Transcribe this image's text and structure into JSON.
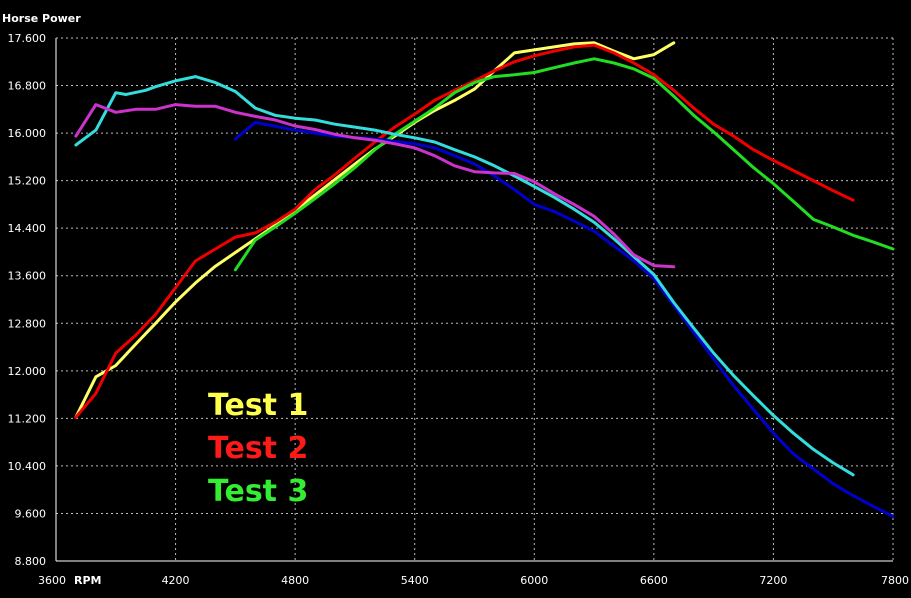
{
  "chart_data": {
    "type": "line",
    "ylabel": "Horse Power",
    "xlabel": "RPM",
    "xlim": [
      3600,
      7800
    ],
    "ylim": [
      8.8,
      17.6
    ],
    "x_ticks": [
      "3600",
      "4200",
      "4800",
      "5400",
      "6000",
      "6600",
      "7200",
      "7800"
    ],
    "y_ticks": [
      "17.600",
      "16.800",
      "16.000",
      "15.200",
      "14.400",
      "13.600",
      "12.800",
      "12.000",
      "11.200",
      "10.400",
      "9.600",
      "8.800"
    ],
    "x_tick_values": [
      3600,
      4200,
      4800,
      5400,
      6000,
      6600,
      7200,
      7800
    ],
    "y_tick_values": [
      17.6,
      16.8,
      16.0,
      15.2,
      14.4,
      13.6,
      12.8,
      12.0,
      11.2,
      10.4,
      9.6,
      8.8
    ],
    "grid": true,
    "legend_placement": "bottom-left",
    "legend": [
      {
        "label": "Test 1",
        "color": "#ffff4d"
      },
      {
        "label": "Test 2",
        "color": "#ff1a1a"
      },
      {
        "label": "Test 3",
        "color": "#33ee33"
      }
    ],
    "series": [
      {
        "color": "#ffff66",
        "x": [
          3700,
          3800,
          3900,
          4000,
          4100,
          4200,
          4300,
          4400,
          4500,
          4600,
          4700,
          4800,
          4900,
          5000,
          5100,
          5200,
          5300,
          5400,
          5500,
          5600,
          5700,
          5800,
          5900,
          6000,
          6100,
          6200,
          6300,
          6400,
          6500,
          6600,
          6700
        ],
        "y": [
          11.22,
          11.9,
          12.09,
          12.45,
          12.8,
          13.16,
          13.48,
          13.76,
          13.99,
          14.22,
          14.45,
          14.7,
          14.96,
          15.22,
          15.48,
          15.73,
          15.95,
          16.18,
          16.38,
          16.55,
          16.74,
          17.05,
          17.35,
          17.4,
          17.45,
          17.5,
          17.52,
          17.38,
          17.25,
          17.32,
          17.52
        ]
      },
      {
        "color": "#ee0000",
        "x": [
          3700,
          3800,
          3900,
          4000,
          4100,
          4200,
          4300,
          4400,
          4500,
          4600,
          4700,
          4800,
          4900,
          5000,
          5100,
          5200,
          5300,
          5400,
          5500,
          5600,
          5700,
          5800,
          5900,
          6000,
          6100,
          6200,
          6300,
          6400,
          6500,
          6600,
          6700,
          6800,
          6900,
          7000,
          7100,
          7200,
          7300,
          7400,
          7500,
          7600
        ],
        "y": [
          11.22,
          11.62,
          12.3,
          12.6,
          12.95,
          13.4,
          13.85,
          14.05,
          14.25,
          14.32,
          14.5,
          14.72,
          15.05,
          15.3,
          15.58,
          15.85,
          16.1,
          16.32,
          16.55,
          16.72,
          16.88,
          17.05,
          17.2,
          17.3,
          17.38,
          17.45,
          17.48,
          17.35,
          17.18,
          16.98,
          16.72,
          16.42,
          16.15,
          15.95,
          15.72,
          15.54,
          15.37,
          15.2,
          15.03,
          14.87
        ]
      },
      {
        "color": "#22dd22",
        "x": [
          4500,
          4600,
          4700,
          4800,
          4900,
          5000,
          5100,
          5200,
          5300,
          5400,
          5500,
          5600,
          5700,
          5800,
          5900,
          6000,
          6100,
          6200,
          6300,
          6400,
          6500,
          6600,
          6700,
          6800,
          6900,
          7000,
          7100,
          7200,
          7300,
          7400,
          7500,
          7600,
          7700,
          7800
        ],
        "y": [
          13.7,
          14.2,
          14.42,
          14.65,
          14.9,
          15.15,
          15.42,
          15.72,
          15.98,
          16.2,
          16.42,
          16.68,
          16.85,
          16.95,
          16.98,
          17.02,
          17.1,
          17.18,
          17.25,
          17.18,
          17.08,
          16.92,
          16.62,
          16.3,
          16.02,
          15.72,
          15.42,
          15.15,
          14.85,
          14.55,
          14.42,
          14.28,
          14.17,
          14.05
        ]
      },
      {
        "color": "#0000cc",
        "x": [
          4500,
          4600,
          4800,
          5000,
          5200,
          5400,
          5500,
          5600,
          5700,
          5800,
          5900,
          6000,
          6100,
          6200,
          6300,
          6400,
          6500,
          6600,
          6700,
          6800,
          6900,
          7000,
          7100,
          7200,
          7300,
          7400,
          7500,
          7600,
          7700,
          7800
        ],
        "y": [
          15.9,
          16.18,
          16.05,
          15.95,
          15.9,
          15.82,
          15.75,
          15.62,
          15.48,
          15.28,
          15.05,
          14.8,
          14.68,
          14.52,
          14.35,
          14.1,
          13.85,
          13.55,
          13.1,
          12.65,
          12.2,
          11.75,
          11.35,
          10.95,
          10.6,
          10.35,
          10.1,
          9.9,
          9.72,
          9.55
        ]
      },
      {
        "color": "#33dddd",
        "x": [
          3700,
          3800,
          3900,
          3950,
          4050,
          4100,
          4200,
          4300,
          4400,
          4500,
          4600,
          4700,
          4800,
          4900,
          5000,
          5100,
          5200,
          5300,
          5400,
          5500,
          5600,
          5700,
          5800,
          5900,
          6000,
          6100,
          6200,
          6300,
          6400,
          6500,
          6600,
          6700,
          6800,
          6900,
          7000,
          7100,
          7200,
          7300,
          7400,
          7500,
          7600
        ],
        "y": [
          15.8,
          16.05,
          16.68,
          16.65,
          16.72,
          16.78,
          16.88,
          16.95,
          16.85,
          16.7,
          16.42,
          16.3,
          16.25,
          16.22,
          16.15,
          16.1,
          16.05,
          15.98,
          15.92,
          15.85,
          15.72,
          15.6,
          15.45,
          15.28,
          15.1,
          14.92,
          14.72,
          14.5,
          14.22,
          13.92,
          13.62,
          13.15,
          12.72,
          12.3,
          11.92,
          11.58,
          11.25,
          10.95,
          10.68,
          10.45,
          10.25
        ]
      },
      {
        "color": "#cc33cc",
        "x": [
          3700,
          3800,
          3900,
          4000,
          4100,
          4200,
          4300,
          4400,
          4500,
          4600,
          4700,
          4800,
          4900,
          5000,
          5100,
          5200,
          5300,
          5400,
          5500,
          5600,
          5700,
          5800,
          5900,
          6000,
          6100,
          6200,
          6300,
          6400,
          6500,
          6600,
          6700
        ],
        "y": [
          15.95,
          16.48,
          16.35,
          16.4,
          16.4,
          16.48,
          16.45,
          16.45,
          16.35,
          16.28,
          16.22,
          16.12,
          16.06,
          15.98,
          15.92,
          15.88,
          15.82,
          15.75,
          15.62,
          15.45,
          15.35,
          15.33,
          15.32,
          15.18,
          14.98,
          14.8,
          14.6,
          14.3,
          13.95,
          13.77,
          13.75
        ]
      }
    ]
  }
}
